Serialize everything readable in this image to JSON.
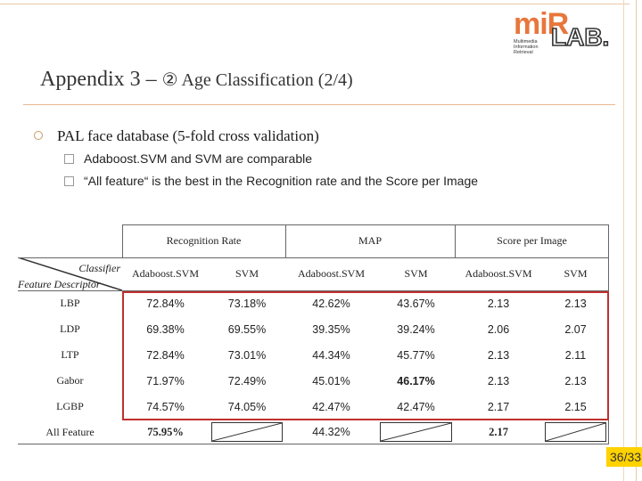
{
  "logo": {
    "mark": "miR",
    "lab": "LAB.",
    "tagline": [
      "Multimedia",
      "Information",
      "Retrieval"
    ]
  },
  "title": {
    "main": "Appendix 3 – ",
    "sub": "② Age Classification (2/4)"
  },
  "bullet": "PAL face database (5-fold cross validation)",
  "sub_bullets": [
    "Adaboost.SVM and SVM are comparable",
    "“All feature“ is the best in the Recognition rate and the Score per Image"
  ],
  "table": {
    "group_headers": [
      "Recognition Rate",
      "MAP",
      "Score per Image"
    ],
    "corner": {
      "top": "Classifier",
      "bottom": "Feature Descriptor"
    },
    "classifier_headers": [
      "Adaboost.SVM",
      "SVM",
      "Adaboost.SVM",
      "SVM",
      "Adaboost.SVM",
      "SVM"
    ],
    "rows": [
      {
        "feature": "LBP",
        "values": [
          "72.84%",
          "73.18%",
          "42.62%",
          "43.67%",
          "2.13",
          "2.13"
        ]
      },
      {
        "feature": "LDP",
        "values": [
          "69.38%",
          "69.55%",
          "39.35%",
          "39.24%",
          "2.06",
          "2.07"
        ]
      },
      {
        "feature": "LTP",
        "values": [
          "72.84%",
          "73.01%",
          "44.34%",
          "45.77%",
          "2.13",
          "2.11"
        ]
      },
      {
        "feature": "Gabor",
        "values": [
          "71.97%",
          "72.49%",
          "45.01%",
          "46.17%",
          "2.13",
          "2.13"
        ]
      },
      {
        "feature": "LGBP",
        "values": [
          "74.57%",
          "74.05%",
          "42.47%",
          "42.47%",
          "2.17",
          "2.15"
        ]
      },
      {
        "feature": "All Feature",
        "values": [
          "75.95%",
          "",
          "44.32%",
          "",
          "2.17",
          ""
        ]
      }
    ]
  },
  "page_number": "36/33",
  "colors": {
    "highlight_border": "#c0302f",
    "page_badge": "#ffd200",
    "logo_orange": "#e8763b"
  }
}
